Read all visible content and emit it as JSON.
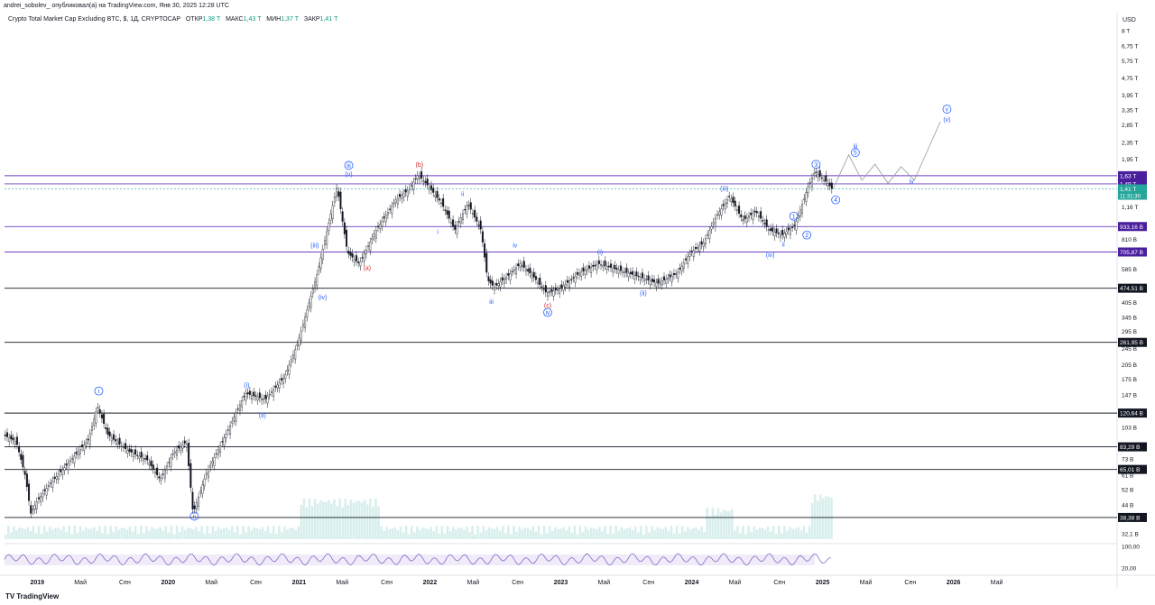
{
  "header": {
    "published_line": "andrei_sobolev_ опубликовал(а) на TradingView.com, Янв 30, 2025 12:28 UTC",
    "symbol": "Crypto Total Market Cap Excluding BTC, $, 1Д, CRYPTOCAP",
    "ohlc": [
      {
        "label": "ОТКР",
        "value": "1,38 T"
      },
      {
        "label": "МАКС",
        "value": "1,43 T"
      },
      {
        "label": "МИН",
        "value": "1,37 T"
      },
      {
        "label": "ЗАКР",
        "value": "1,41 T"
      }
    ]
  },
  "branding": {
    "logo": "TV",
    "name": "TradingView"
  },
  "chart_data": {
    "type": "candlestick",
    "currency_label": "USD",
    "y_scale": "log",
    "ylim": [
      32100000000,
      8000000000000
    ],
    "price_ticks": [
      {
        "label": "8 T",
        "value": 8000000000000
      },
      {
        "label": "6,75 T",
        "value": 6750000000000
      },
      {
        "label": "5,75 T",
        "value": 5750000000000
      },
      {
        "label": "4,75 T",
        "value": 4750000000000
      },
      {
        "label": "3,95 T",
        "value": 3950000000000
      },
      {
        "label": "3,35 T",
        "value": 3350000000000
      },
      {
        "label": "2,85 T",
        "value": 2850000000000
      },
      {
        "label": "2,35 T",
        "value": 2350000000000
      },
      {
        "label": "1,95 T",
        "value": 1950000000000
      },
      {
        "label": "1,16 T",
        "value": 1160000000000
      },
      {
        "label": "810 B",
        "value": 810000000000
      },
      {
        "label": "585 B",
        "value": 585000000000
      },
      {
        "label": "405 B",
        "value": 405000000000
      },
      {
        "label": "345 B",
        "value": 345000000000
      },
      {
        "label": "295 B",
        "value": 295000000000
      },
      {
        "label": "245 B",
        "value": 245000000000
      },
      {
        "label": "205 B",
        "value": 205000000000
      },
      {
        "label": "175 B",
        "value": 175000000000
      },
      {
        "label": "147 B",
        "value": 147000000000
      },
      {
        "label": "103 B",
        "value": 103000000000
      },
      {
        "label": "73 B",
        "value": 73000000000
      },
      {
        "label": "61 B",
        "value": 61000000000
      },
      {
        "label": "52 B",
        "value": 52000000000
      },
      {
        "label": "44 B",
        "value": 44000000000
      },
      {
        "label": "32,1 B",
        "value": 32100000000
      }
    ],
    "x_ticks": [
      {
        "label": "2019",
        "value": 2019.0,
        "bold": true
      },
      {
        "label": "Май",
        "value": 2019.33
      },
      {
        "label": "Сен",
        "value": 2019.67
      },
      {
        "label": "2020",
        "value": 2020.0,
        "bold": true
      },
      {
        "label": "Май",
        "value": 2020.33
      },
      {
        "label": "Сен",
        "value": 2020.67
      },
      {
        "label": "2021",
        "value": 2021.0,
        "bold": true
      },
      {
        "label": "Май",
        "value": 2021.33
      },
      {
        "label": "Сен",
        "value": 2021.67
      },
      {
        "label": "2022",
        "value": 2022.0,
        "bold": true
      },
      {
        "label": "Май",
        "value": 2022.33
      },
      {
        "label": "Сен",
        "value": 2022.67
      },
      {
        "label": "2023",
        "value": 2023.0,
        "bold": true
      },
      {
        "label": "Май",
        "value": 2023.33
      },
      {
        "label": "Сен",
        "value": 2023.67
      },
      {
        "label": "2024",
        "value": 2024.0,
        "bold": true
      },
      {
        "label": "Май",
        "value": 2024.33
      },
      {
        "label": "Сен",
        "value": 2024.67
      },
      {
        "label": "2025",
        "value": 2025.0,
        "bold": true
      },
      {
        "label": "Май",
        "value": 2025.33
      },
      {
        "label": "Сен",
        "value": 2025.67
      },
      {
        "label": "2026",
        "value": 2026.0,
        "bold": true
      },
      {
        "label": "Май",
        "value": 2026.33
      }
    ],
    "xlim": [
      2018.75,
      2027.25
    ],
    "horizontal_levels": [
      {
        "label": "1,63 T",
        "value": 1630000000000,
        "color": "#6a3fbf",
        "style": "purple"
      },
      {
        "label": "1,49 T",
        "value": 1490000000000,
        "color": "#6a3fbf",
        "style": "purple"
      },
      {
        "label": "933,16 B",
        "value": 933160000000,
        "color": "#6a3fbf",
        "style": "purple"
      },
      {
        "label": "705,87 B",
        "value": 705870000000,
        "color": "#6a3fbf",
        "style": "purple"
      },
      {
        "label": "474,51 B",
        "value": 474510000000,
        "color": "#131722",
        "style": "black"
      },
      {
        "label": "261,95 B",
        "value": 261950000000,
        "color": "#131722",
        "style": "black"
      },
      {
        "label": "120,64 B",
        "value": 120640000000,
        "color": "#131722",
        "style": "black"
      },
      {
        "label": "83,29 B",
        "value": 83290000000,
        "color": "#131722",
        "style": "black"
      },
      {
        "label": "65,01 B",
        "value": 65010000000,
        "color": "#131722",
        "style": "black"
      },
      {
        "label": "38,38 B",
        "value": 38380000000,
        "color": "#131722",
        "style": "black"
      }
    ],
    "current_price": {
      "label": "1,41 T",
      "value": 1410000000000,
      "countdown": "11:31:30",
      "color": "#26a69a"
    },
    "price_path": [
      [
        2018.75,
        95000000000.0
      ],
      [
        2018.85,
        88000000000.0
      ],
      [
        2018.92,
        60000000000.0
      ],
      [
        2018.96,
        40000000000.0
      ],
      [
        2019.0,
        45000000000.0
      ],
      [
        2019.1,
        55000000000.0
      ],
      [
        2019.25,
        70000000000.0
      ],
      [
        2019.4,
        90000000000.0
      ],
      [
        2019.47,
        130000000000.0
      ],
      [
        2019.55,
        95000000000.0
      ],
      [
        2019.7,
        80000000000.0
      ],
      [
        2019.85,
        72000000000.0
      ],
      [
        2019.95,
        58000000000.0
      ],
      [
        2020.05,
        78000000000.0
      ],
      [
        2020.15,
        88000000000.0
      ],
      [
        2020.2,
        40000000000.0
      ],
      [
        2020.3,
        62000000000.0
      ],
      [
        2020.45,
        95000000000.0
      ],
      [
        2020.6,
        150000000000.0
      ],
      [
        2020.75,
        140000000000.0
      ],
      [
        2020.9,
        180000000000.0
      ],
      [
        2021.0,
        260000000000.0
      ],
      [
        2021.15,
        560000000000.0
      ],
      [
        2021.3,
        1450000000000.0
      ],
      [
        2021.38,
        700000000000.0
      ],
      [
        2021.47,
        620000000000.0
      ],
      [
        2021.6,
        900000000000.0
      ],
      [
        2021.75,
        1250000000000.0
      ],
      [
        2021.85,
        1400000000000.0
      ],
      [
        2021.92,
        1650000000000.0
      ],
      [
        2022.0,
        1450000000000.0
      ],
      [
        2022.1,
        1200000000000.0
      ],
      [
        2022.2,
        900000000000.0
      ],
      [
        2022.3,
        1200000000000.0
      ],
      [
        2022.4,
        900000000000.0
      ],
      [
        2022.45,
        520000000000.0
      ],
      [
        2022.5,
        480000000000.0
      ],
      [
        2022.6,
        540000000000.0
      ],
      [
        2022.7,
        620000000000.0
      ],
      [
        2022.8,
        540000000000.0
      ],
      [
        2022.9,
        450000000000.0
      ],
      [
        2023.0,
        470000000000.0
      ],
      [
        2023.15,
        560000000000.0
      ],
      [
        2023.3,
        620000000000.0
      ],
      [
        2023.45,
        580000000000.0
      ],
      [
        2023.6,
        540000000000.0
      ],
      [
        2023.75,
        500000000000.0
      ],
      [
        2023.9,
        560000000000.0
      ],
      [
        2024.0,
        700000000000.0
      ],
      [
        2024.1,
        780000000000.0
      ],
      [
        2024.2,
        1050000000000.0
      ],
      [
        2024.3,
        1300000000000.0
      ],
      [
        2024.4,
        1000000000000.0
      ],
      [
        2024.5,
        1100000000000.0
      ],
      [
        2024.6,
        900000000000.0
      ],
      [
        2024.7,
        850000000000.0
      ],
      [
        2024.8,
        950000000000.0
      ],
      [
        2024.9,
        1450000000000.0
      ],
      [
        2024.95,
        1700000000000.0
      ],
      [
        2025.05,
        1500000000000.0
      ],
      [
        2025.08,
        1410000000000.0
      ]
    ],
    "projection": [
      [
        2025.08,
        1410000000000.0
      ],
      [
        2025.2,
        2050000000000.0
      ],
      [
        2025.3,
        1550000000000.0
      ],
      [
        2025.4,
        1850000000000.0
      ],
      [
        2025.5,
        1500000000000.0
      ],
      [
        2025.6,
        1800000000000.0
      ],
      [
        2025.7,
        1550000000000.0
      ],
      [
        2025.9,
        2950000000000.0
      ]
    ],
    "wave_labels": [
      {
        "text": "ii",
        "x": 2020.2,
        "y": 38000000000.0,
        "color": "#2962ff",
        "circle": true
      },
      {
        "text": "i",
        "x": 2019.47,
        "y": 150000000000.0,
        "color": "#2962ff",
        "circle": true
      },
      {
        "text": "(i)",
        "x": 2020.6,
        "y": 160000000000.0,
        "color": "#2962ff"
      },
      {
        "text": "(ii)",
        "x": 2020.72,
        "y": 115000000000.0,
        "color": "#2962ff"
      },
      {
        "text": "(iii)",
        "x": 2021.12,
        "y": 740000000000.0,
        "color": "#2962ff"
      },
      {
        "text": "(iv)",
        "x": 2021.18,
        "y": 420000000000.0,
        "color": "#2962ff"
      },
      {
        "text": "iii",
        "x": 2021.38,
        "y": 1780000000000.0,
        "color": "#2962ff",
        "circle": true
      },
      {
        "text": "(v)",
        "x": 2021.38,
        "y": 1620000000000.0,
        "color": "#2962ff"
      },
      {
        "text": "(a)",
        "x": 2021.52,
        "y": 580000000000.0,
        "color": "#d32f2f"
      },
      {
        "text": "(b)",
        "x": 2021.92,
        "y": 1800000000000.0,
        "color": "#d32f2f"
      },
      {
        "text": "ii",
        "x": 2022.25,
        "y": 1300000000000.0,
        "color": "#2962ff"
      },
      {
        "text": "i",
        "x": 2022.06,
        "y": 860000000000.0,
        "color": "#2962ff"
      },
      {
        "text": "iii",
        "x": 2022.47,
        "y": 400000000000.0,
        "color": "#2962ff"
      },
      {
        "text": "iv",
        "x": 2022.65,
        "y": 740000000000.0,
        "color": "#2962ff"
      },
      {
        "text": "(c)",
        "x": 2022.9,
        "y": 385000000000.0,
        "color": "#d32f2f"
      },
      {
        "text": "iv",
        "x": 2022.9,
        "y": 355000000000.0,
        "color": "#2962ff",
        "circle": true
      },
      {
        "text": "(i)",
        "x": 2023.3,
        "y": 690000000000.0,
        "color": "#2962ff"
      },
      {
        "text": "(ii)",
        "x": 2023.63,
        "y": 440000000000.0,
        "color": "#2962ff"
      },
      {
        "text": "(iii)",
        "x": 2024.25,
        "y": 1380000000000.0,
        "color": "#2962ff"
      },
      {
        "text": "(iv)",
        "x": 2024.6,
        "y": 670000000000.0,
        "color": "#2962ff"
      },
      {
        "text": "ii",
        "x": 2024.7,
        "y": 750000000000.0,
        "color": "#2962ff"
      },
      {
        "text": "1",
        "x": 2024.78,
        "y": 1020000000000.0,
        "color": "#2962ff",
        "circle": true
      },
      {
        "text": "2",
        "x": 2024.88,
        "y": 830000000000.0,
        "color": "#2962ff",
        "circle": true
      },
      {
        "text": "3",
        "x": 2024.95,
        "y": 1800000000000.0,
        "color": "#2962ff",
        "circle": true
      },
      {
        "text": "4",
        "x": 2025.1,
        "y": 1220000000000.0,
        "color": "#2962ff",
        "circle": true
      },
      {
        "text": "iii",
        "x": 2025.25,
        "y": 2200000000000.0,
        "color": "#2962ff"
      },
      {
        "text": "5",
        "x": 2025.25,
        "y": 2050000000000.0,
        "color": "#2962ff",
        "circle": true
      },
      {
        "text": "iv",
        "x": 2025.68,
        "y": 1500000000000.0,
        "color": "#2962ff"
      },
      {
        "text": "v",
        "x": 2025.95,
        "y": 3300000000000.0,
        "color": "#2962ff",
        "circle": true
      },
      {
        "text": "(v)",
        "x": 2025.95,
        "y": 2950000000000.0,
        "color": "#2962ff"
      }
    ],
    "rsi": {
      "ticks": [
        {
          "label": "100,00",
          "value": 100
        },
        {
          "label": "20,00",
          "value": 20
        }
      ],
      "band": [
        30,
        70
      ],
      "color": "#7e57c2"
    },
    "volume": {
      "color": "#26a69a"
    },
    "grid": false
  }
}
